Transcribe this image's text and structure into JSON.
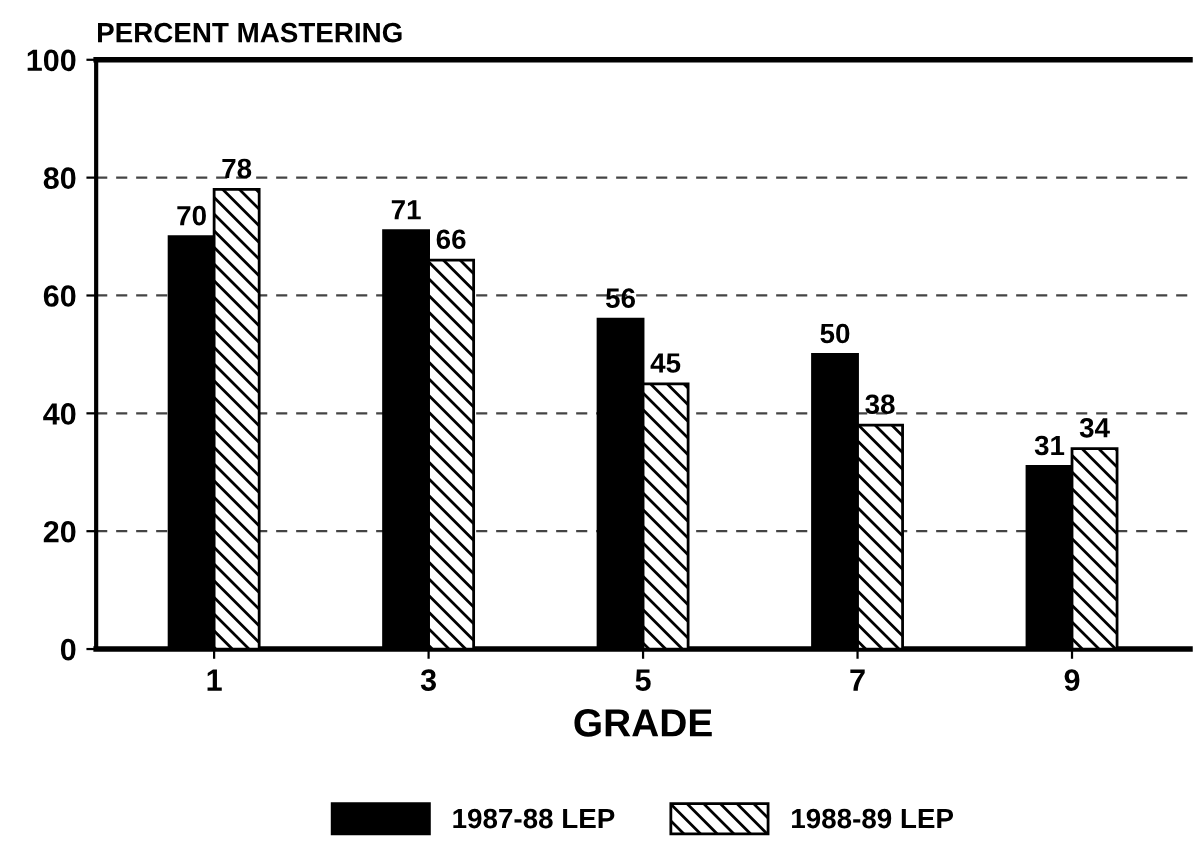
{
  "chart_data": {
    "type": "bar",
    "ylabel": "PERCENT MASTERING",
    "xlabel": "GRADE",
    "categories": [
      "1",
      "3",
      "5",
      "7",
      "9"
    ],
    "series": [
      {
        "name": "1987-88 LEP",
        "color": "#000000",
        "values": [
          70,
          71,
          56,
          50,
          31
        ]
      },
      {
        "name": "1988-89 LEP",
        "color": "#000000",
        "values": [
          78,
          66,
          45,
          38,
          34
        ]
      }
    ],
    "ylim": [
      0,
      100
    ],
    "yticks": [
      0,
      20,
      40,
      60,
      80,
      100
    ],
    "grid": "y",
    "legend": "bottom",
    "data_labels": true
  }
}
